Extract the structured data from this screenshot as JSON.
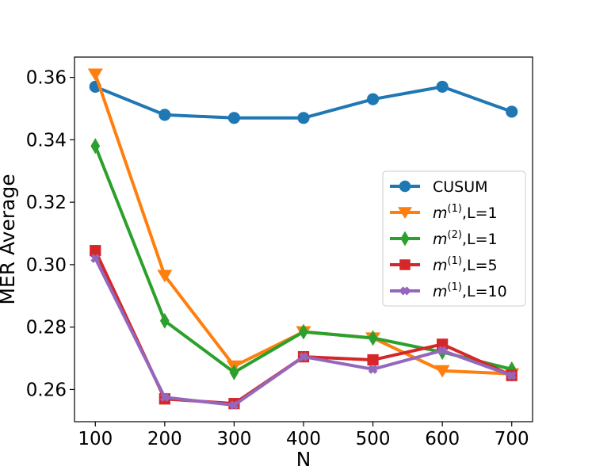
{
  "chart_data": {
    "type": "line",
    "title": "",
    "xlabel": "N",
    "ylabel": "MER Average",
    "x": [
      100,
      200,
      300,
      400,
      500,
      600,
      700
    ],
    "xlim": [
      70,
      730
    ],
    "ylim": [
      0.2497,
      0.3665
    ],
    "xticks": [
      100,
      200,
      300,
      400,
      500,
      600,
      700
    ],
    "yticks": [
      0.26,
      0.28,
      0.3,
      0.32,
      0.34,
      0.36
    ],
    "ytick_labels": [
      "0.26",
      "0.28",
      "0.30",
      "0.32",
      "0.34",
      "0.36"
    ],
    "legend_position": "center-right",
    "series": [
      {
        "name": "CUSUM",
        "label_base": "CUSUM",
        "superscript": "",
        "label_suffix": "",
        "color": "#1f77b4",
        "marker": "circle",
        "values": [
          0.357,
          0.348,
          0.347,
          0.347,
          0.353,
          0.357,
          0.349
        ]
      },
      {
        "name": "m^(1),L=1",
        "label_base": "m",
        "superscript": "(1)",
        "label_suffix": ",L=1",
        "color": "#ff7f0e",
        "marker": "triangle-down",
        "values": [
          0.361,
          0.2965,
          0.2675,
          0.2785,
          0.2765,
          0.266,
          0.265
        ]
      },
      {
        "name": "m^(2),L=1",
        "label_base": "m",
        "superscript": "(2)",
        "label_suffix": ",L=1",
        "color": "#2ca02c",
        "marker": "diamond",
        "values": [
          0.338,
          0.282,
          0.2655,
          0.2785,
          0.2765,
          0.272,
          0.2665
        ]
      },
      {
        "name": "m^(1),L=5",
        "label_base": "m",
        "superscript": "(1)",
        "label_suffix": ",L=5",
        "color": "#d62728",
        "marker": "square",
        "values": [
          0.3045,
          0.257,
          0.2555,
          0.2705,
          0.2695,
          0.2745,
          0.2645
        ]
      },
      {
        "name": "m^(1),L=10",
        "label_base": "m",
        "superscript": "(1)",
        "label_suffix": ",L=10",
        "color": "#9467bd",
        "marker": "x",
        "values": [
          0.302,
          0.2575,
          0.255,
          0.2705,
          0.2665,
          0.2725,
          0.2645
        ]
      }
    ]
  }
}
